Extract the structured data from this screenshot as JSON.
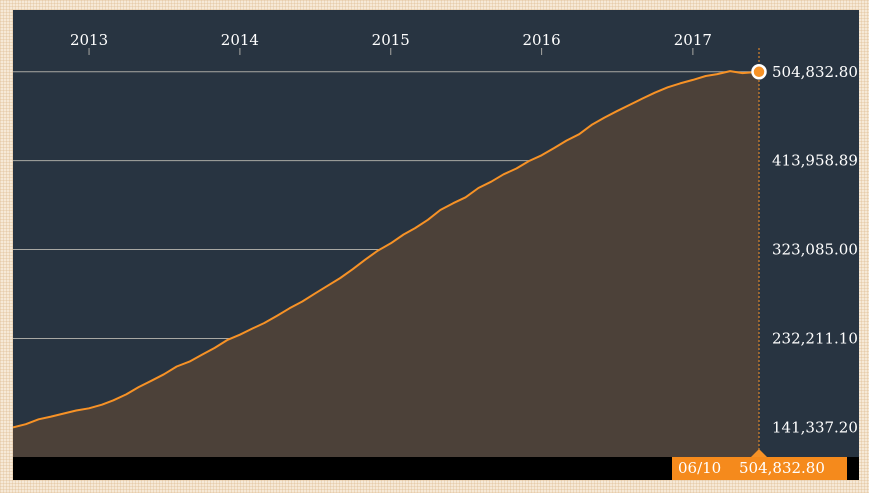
{
  "chart_data": {
    "type": "area",
    "x_range": [
      "2012-07-01",
      "2017-06-10"
    ],
    "x_tick_labels": [
      "2013",
      "2014",
      "2015",
      "2016",
      "2017"
    ],
    "x_tick_dates": [
      "2013-01-01",
      "2014-01-01",
      "2015-01-01",
      "2016-01-01",
      "2017-01-01"
    ],
    "y_tick_values": [
      141337.2,
      232211.1,
      323085.0,
      413958.89,
      504832.8
    ],
    "y_tick_labels": [
      "141,337.20",
      "232,211.10",
      "323,085.00",
      "413,958.89",
      "504,832.80"
    ],
    "ylim": [
      111000,
      568000
    ],
    "grid": true,
    "series": [
      {
        "x": [
          "2012-07-01",
          "2012-08-01",
          "2012-09-01",
          "2012-10-01",
          "2012-11-01",
          "2012-12-01",
          "2013-01-01",
          "2013-02-01",
          "2013-03-01",
          "2013-04-01",
          "2013-05-01",
          "2013-06-01",
          "2013-07-01",
          "2013-08-01",
          "2013-09-01",
          "2013-10-01",
          "2013-11-01",
          "2013-12-01",
          "2014-01-01",
          "2014-02-01",
          "2014-03-01",
          "2014-04-01",
          "2014-05-01",
          "2014-06-01",
          "2014-07-01",
          "2014-08-01",
          "2014-09-01",
          "2014-10-01",
          "2014-11-01",
          "2014-12-01",
          "2015-01-01",
          "2015-02-01",
          "2015-03-01",
          "2015-04-01",
          "2015-05-01",
          "2015-06-01",
          "2015-07-01",
          "2015-08-01",
          "2015-09-01",
          "2015-10-01",
          "2015-11-01",
          "2015-12-01",
          "2016-01-01",
          "2016-02-01",
          "2016-03-01",
          "2016-04-01",
          "2016-05-01",
          "2016-06-01",
          "2016-07-01",
          "2016-08-01",
          "2016-09-01",
          "2016-10-01",
          "2016-11-01",
          "2016-12-01",
          "2017-01-01",
          "2017-02-01",
          "2017-03-01",
          "2017-04-01",
          "2017-05-01",
          "2017-06-10"
        ],
        "values": [
          141300,
          144500,
          149500,
          152300,
          155500,
          158500,
          160800,
          164500,
          169000,
          175000,
          182500,
          189000,
          195500,
          203500,
          208500,
          215500,
          222500,
          230500,
          236000,
          242500,
          248000,
          255500,
          263000,
          270000,
          278000,
          286000,
          294000,
          303000,
          313000,
          322000,
          329500,
          338500,
          345000,
          353500,
          363500,
          370500,
          376500,
          386000,
          392500,
          400000,
          406000,
          413500,
          419500,
          427000,
          434500,
          441000,
          450500,
          458000,
          464500,
          471000,
          477500,
          483500,
          489000,
          493000,
          496500,
          500500,
          502500,
          505500,
          503500,
          504832.8
        ]
      }
    ],
    "line_color": "#f79226",
    "fill_color": "#4c4139",
    "background_color": "#283441",
    "last_point": {
      "date_label": "06/10",
      "value_label": "504,832.80",
      "value": 504832.8
    }
  }
}
